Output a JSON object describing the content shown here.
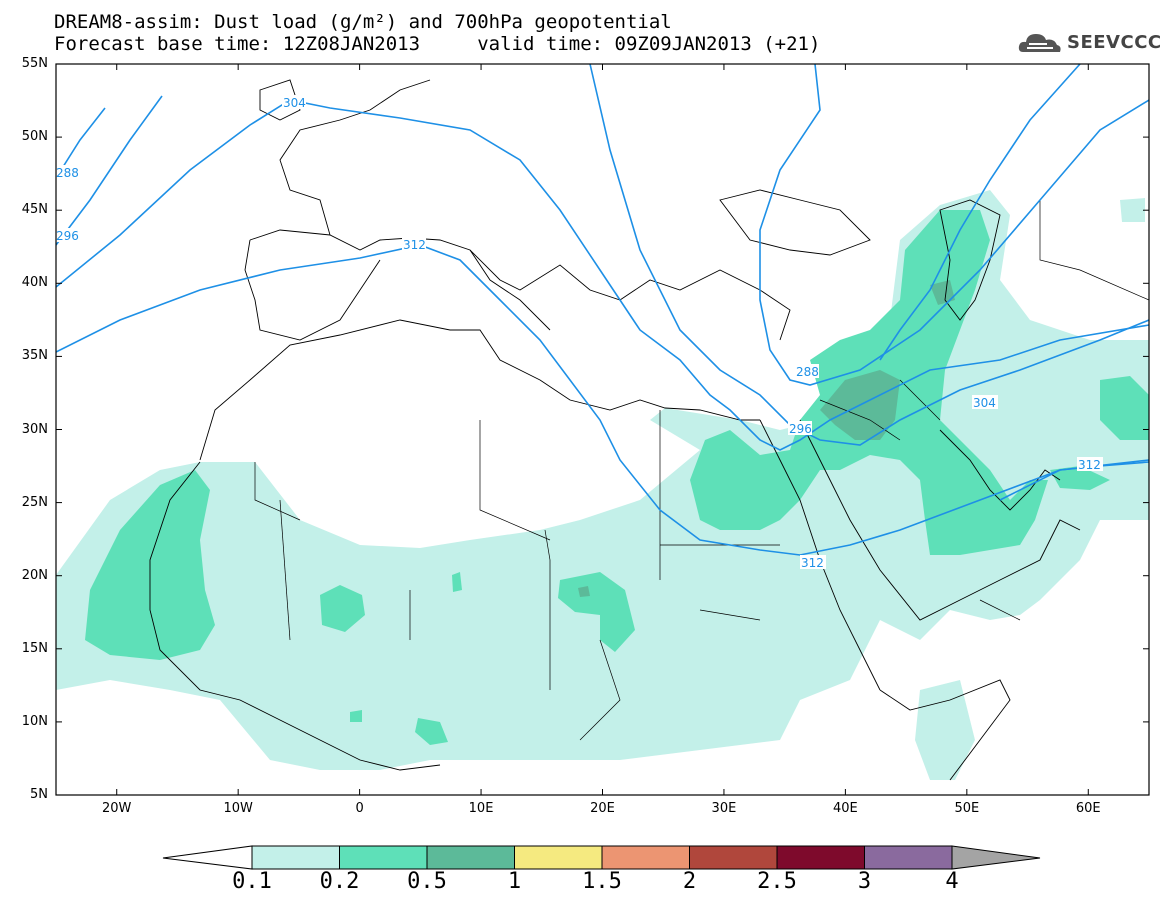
{
  "title": {
    "line1": "DREAM8-assim: Dust load (g/m²) and 700hPa geopotential",
    "line2": "Forecast base time: 12Z08JAN2013     valid time: 09Z09JAN2013 (+21)"
  },
  "logo": {
    "text": "SEEVCCC",
    "icon": "cloud-icon"
  },
  "map": {
    "lon_range": [
      -25,
      65
    ],
    "lat_range": [
      5,
      55
    ],
    "lat_ticks": [
      "55N",
      "50N",
      "45N",
      "40N",
      "35N",
      "30N",
      "25N",
      "20N",
      "15N",
      "10N",
      "5N"
    ],
    "lon_ticks": [
      "20W",
      "10W",
      "0",
      "10E",
      "20E",
      "30E",
      "40E",
      "50E",
      "60E"
    ]
  },
  "contours": {
    "color": "#1e90e6",
    "labels": [
      "304",
      "288",
      "296",
      "312",
      "288",
      "296",
      "304",
      "312",
      "312"
    ]
  },
  "colorbar": {
    "labels": [
      "0.1",
      "0.2",
      "0.5",
      "1",
      "1.5",
      "2",
      "2.5",
      "3",
      "4"
    ],
    "colors": [
      "#c3f0e9",
      "#5ee0b8",
      "#5cba99",
      "#f5ea80",
      "#ec9572",
      "#b0473c",
      "#7e0a2c",
      "#8a6a9e",
      "#a4a4a4"
    ]
  }
}
